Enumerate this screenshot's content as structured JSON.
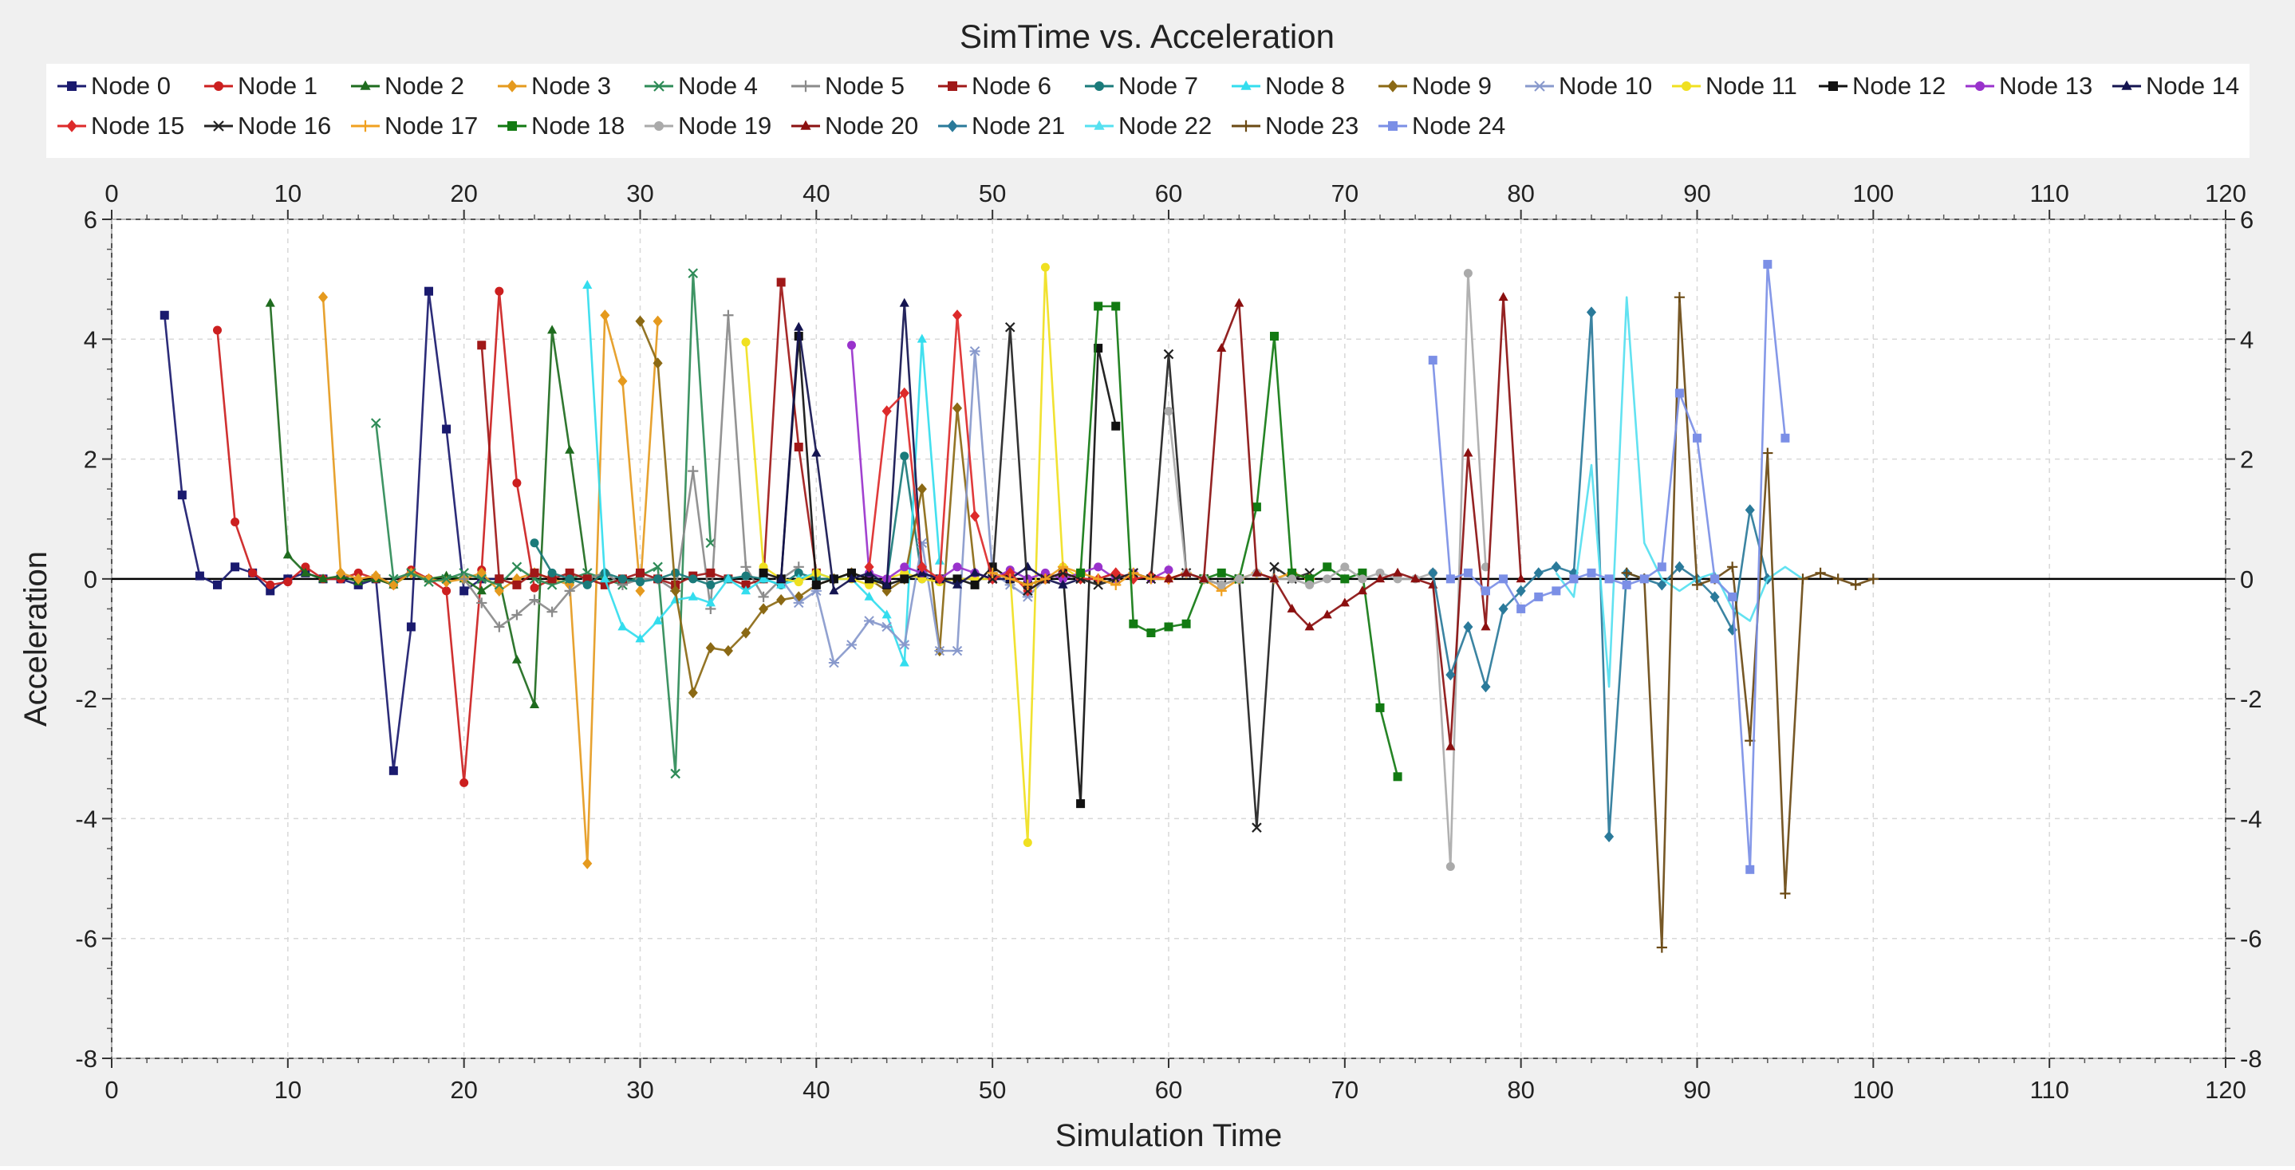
{
  "chart_data": {
    "type": "line",
    "title": "SimTime vs. Acceleration",
    "xlabel": "Simulation Time",
    "ylabel": "Acceleration",
    "xlim": [
      0,
      120
    ],
    "ylim": [
      -8,
      6
    ],
    "x_ticks": [
      0,
      10,
      20,
      30,
      40,
      50,
      60,
      70,
      80,
      90,
      100,
      110,
      120
    ],
    "y_ticks": [
      -8,
      -6,
      -4,
      -2,
      0,
      2,
      4,
      6
    ],
    "grid": true,
    "legend_position": "top",
    "series": [
      {
        "name": "Node 0",
        "color": "#1a1a6e",
        "marker": "square",
        "x": [
          3,
          4,
          5,
          6,
          7,
          8,
          9,
          10,
          11,
          12,
          13,
          14,
          15,
          16,
          17,
          18,
          19,
          20,
          21,
          22
        ],
        "y": [
          4.4,
          1.4,
          0.05,
          -0.1,
          0.2,
          0.1,
          -0.2,
          0.0,
          0.1,
          0.0,
          0.0,
          -0.1,
          0.0,
          -3.2,
          -0.8,
          4.8,
          2.5,
          -0.2,
          0.0,
          0.0
        ]
      },
      {
        "name": "Node 1",
        "color": "#cc1f1f",
        "marker": "circle",
        "x": [
          6,
          7,
          8,
          9,
          10,
          11,
          12,
          13,
          14,
          15,
          16,
          17,
          18,
          19,
          20,
          21,
          22,
          23,
          24,
          25
        ],
        "y": [
          4.15,
          0.95,
          0.1,
          -0.1,
          -0.05,
          0.2,
          0.0,
          0.0,
          0.1,
          0.0,
          -0.1,
          0.15,
          0.0,
          -0.2,
          -3.4,
          0.15,
          4.8,
          1.6,
          -0.15,
          0.0
        ]
      },
      {
        "name": "Node 2",
        "color": "#1e6b1e",
        "marker": "triangle",
        "x": [
          9,
          10,
          11,
          12,
          13,
          14,
          15,
          16,
          17,
          18,
          19,
          20,
          21,
          22,
          23,
          24,
          25,
          26,
          27,
          28
        ],
        "y": [
          4.6,
          0.4,
          0.1,
          0.0,
          0.05,
          -0.05,
          0.0,
          -0.1,
          0.1,
          0.0,
          0.05,
          0.0,
          -0.2,
          0.0,
          -1.35,
          -2.1,
          4.15,
          2.15,
          0.0,
          0.1
        ]
      },
      {
        "name": "Node 3",
        "color": "#e59a1e",
        "marker": "diamond",
        "x": [
          12,
          13,
          14,
          15,
          16,
          17,
          18,
          19,
          20,
          21,
          22,
          23,
          24,
          25,
          26,
          27,
          28,
          29,
          30,
          31
        ],
        "y": [
          4.7,
          0.1,
          0.0,
          0.05,
          -0.1,
          0.1,
          0.0,
          -0.05,
          0.0,
          0.1,
          -0.2,
          0.0,
          0.1,
          0.0,
          -0.1,
          -4.75,
          4.4,
          3.3,
          -0.2,
          4.3
        ]
      },
      {
        "name": "Node 4",
        "color": "#2e8b57",
        "marker": "x",
        "x": [
          15,
          16,
          17,
          18,
          19,
          20,
          21,
          22,
          23,
          24,
          25,
          26,
          27,
          28,
          29,
          30,
          31,
          32,
          33,
          34
        ],
        "y": [
          2.6,
          0.0,
          0.1,
          -0.05,
          0.0,
          0.1,
          0.0,
          -0.1,
          0.2,
          0.0,
          -0.1,
          0.0,
          0.1,
          0.0,
          -0.1,
          0.05,
          0.2,
          -3.25,
          5.1,
          0.6
        ]
      },
      {
        "name": "Node 5",
        "color": "#8a8a8a",
        "marker": "plus",
        "x": [
          20,
          21,
          22,
          23,
          24,
          25,
          26,
          27,
          28,
          29,
          30,
          31,
          32,
          33,
          34,
          35,
          36,
          37,
          38,
          39
        ],
        "y": [
          0.0,
          -0.4,
          -0.8,
          -0.6,
          -0.35,
          -0.55,
          -0.2,
          0.0,
          0.1,
          -0.1,
          0.0,
          0.0,
          -0.2,
          1.8,
          -0.5,
          4.4,
          0.2,
          -0.3,
          0.0,
          0.2
        ]
      },
      {
        "name": "Node 6",
        "color": "#a01818",
        "marker": "square",
        "x": [
          21,
          22,
          23,
          24,
          25,
          26,
          27,
          28,
          29,
          30,
          31,
          32,
          33,
          34,
          35,
          36,
          37,
          38,
          39,
          40
        ],
        "y": [
          3.9,
          0.0,
          -0.1,
          0.1,
          0.0,
          0.1,
          0.0,
          -0.1,
          0.0,
          0.1,
          0.0,
          -0.1,
          0.05,
          0.1,
          0.0,
          -0.1,
          0.0,
          4.95,
          2.2,
          0.1
        ]
      },
      {
        "name": "Node 7",
        "color": "#1a7a7a",
        "marker": "circle",
        "x": [
          24,
          25,
          26,
          27,
          28,
          29,
          30,
          31,
          32,
          33,
          34,
          35,
          36,
          37,
          38,
          39,
          40,
          41,
          42,
          43,
          44,
          45,
          46
        ],
        "y": [
          0.6,
          0.1,
          0.0,
          -0.1,
          0.1,
          0.0,
          -0.05,
          0.0,
          0.1,
          0.0,
          -0.1,
          0.0,
          0.05,
          0.0,
          -0.1,
          0.1,
          0.0,
          0.0,
          0.1,
          0.0,
          -0.05,
          2.05,
          0.0
        ]
      },
      {
        "name": "Node 8",
        "color": "#33ddee",
        "marker": "triangle",
        "x": [
          27,
          28,
          29,
          30,
          31,
          32,
          33,
          34,
          35,
          36,
          37,
          38,
          39,
          40,
          41,
          42,
          43,
          44,
          45,
          46,
          47
        ],
        "y": [
          4.9,
          0.0,
          -0.8,
          -1.0,
          -0.7,
          -0.35,
          -0.3,
          -0.4,
          0.0,
          -0.2,
          0.0,
          -0.1,
          0.0,
          0.1,
          0.0,
          0.0,
          -0.3,
          -0.6,
          -1.4,
          4.0,
          0.3
        ]
      },
      {
        "name": "Node 9",
        "color": "#8b6914",
        "marker": "diamond",
        "x": [
          30,
          31,
          32,
          33,
          34,
          35,
          36,
          37,
          38,
          39,
          40,
          41,
          42,
          43,
          44,
          45,
          46,
          47,
          48,
          49
        ],
        "y": [
          4.3,
          3.6,
          -0.2,
          -1.9,
          -1.15,
          -1.2,
          -0.9,
          -0.5,
          -0.35,
          -0.3,
          -0.1,
          0.0,
          0.1,
          0.0,
          -0.2,
          0.0,
          1.5,
          -1.2,
          2.85,
          0.1
        ]
      },
      {
        "name": "Node 10",
        "color": "#8899cc",
        "marker": "star",
        "x": [
          38,
          39,
          40,
          41,
          42,
          43,
          44,
          45,
          46,
          47,
          48,
          49,
          50,
          51,
          52,
          53,
          54,
          55
        ],
        "y": [
          0.0,
          -0.4,
          -0.2,
          -1.4,
          -1.1,
          -0.7,
          -0.8,
          -1.1,
          0.6,
          -1.2,
          -1.2,
          3.8,
          0.1,
          -0.1,
          -0.3,
          0.0,
          0.1,
          0.0
        ]
      },
      {
        "name": "Node 11",
        "color": "#f0e020",
        "marker": "circle",
        "x": [
          36,
          37,
          38,
          39,
          40,
          41,
          42,
          43,
          44,
          45,
          46,
          47,
          48,
          49,
          50,
          51,
          52,
          53,
          54,
          55
        ],
        "y": [
          3.95,
          0.2,
          0.0,
          -0.05,
          0.1,
          0.0,
          0.0,
          -0.1,
          0.0,
          0.1,
          0.0,
          -0.05,
          0.0,
          0.0,
          0.0,
          0.1,
          -4.4,
          5.2,
          0.2,
          0.0
        ]
      },
      {
        "name": "Node 12",
        "color": "#111111",
        "marker": "square",
        "x": [
          37,
          38,
          39,
          40,
          41,
          42,
          43,
          44,
          45,
          46,
          47,
          48,
          49,
          50,
          51,
          52,
          53,
          54,
          55,
          56,
          57
        ],
        "y": [
          0.1,
          0.0,
          4.05,
          -0.1,
          0.0,
          0.1,
          0.0,
          -0.1,
          0.0,
          0.1,
          0.0,
          0.0,
          -0.1,
          0.2,
          0.0,
          -0.1,
          0.0,
          0.1,
          -3.75,
          3.85,
          2.55
        ]
      },
      {
        "name": "Node 13",
        "color": "#9932cc",
        "marker": "circle",
        "x": [
          42,
          43,
          44,
          45,
          46,
          47,
          48,
          49,
          50,
          51,
          52,
          53,
          54,
          55,
          56,
          57,
          58,
          59,
          60
        ],
        "y": [
          3.9,
          0.1,
          0.0,
          0.2,
          0.1,
          0.0,
          0.2,
          0.1,
          0.0,
          0.15,
          0.0,
          0.1,
          0.0,
          0.1,
          0.2,
          0.0,
          0.1,
          0.0,
          0.15
        ]
      },
      {
        "name": "Node 14",
        "color": "#141450",
        "marker": "triangle",
        "x": [
          38,
          39,
          40,
          41,
          42,
          43,
          44,
          45,
          46,
          47,
          48,
          49,
          50,
          51,
          52,
          53,
          54,
          55,
          56,
          57
        ],
        "y": [
          0.0,
          4.2,
          2.1,
          -0.2,
          0.0,
          0.1,
          -0.1,
          4.6,
          0.1,
          0.0,
          -0.1,
          0.1,
          0.0,
          0.0,
          0.2,
          0.0,
          -0.1,
          0.0,
          0.0,
          0.1
        ]
      },
      {
        "name": "Node 15",
        "color": "#dd2a2a",
        "marker": "diamond",
        "x": [
          43,
          44,
          45,
          46,
          47,
          48,
          49,
          50,
          51,
          52,
          53,
          54,
          55,
          56,
          57,
          58,
          59,
          60,
          61
        ],
        "y": [
          0.2,
          2.8,
          3.1,
          0.2,
          0.0,
          4.4,
          1.05,
          0.0,
          0.1,
          -0.2,
          0.0,
          0.1,
          0.0,
          0.0,
          0.1,
          0.0,
          0.05,
          0.0,
          0.1
        ]
      },
      {
        "name": "Node 16",
        "color": "#222222",
        "marker": "x",
        "x": [
          50,
          51,
          52,
          53,
          54,
          55,
          56,
          57,
          58,
          59,
          60,
          61,
          62,
          63,
          64,
          65,
          66,
          67,
          68
        ],
        "y": [
          0.0,
          4.2,
          -0.2,
          0.0,
          0.1,
          0.0,
          -0.1,
          0.0,
          0.1,
          0.0,
          3.75,
          0.1,
          0.0,
          -0.1,
          0.0,
          -4.15,
          0.2,
          0.0,
          0.1
        ]
      },
      {
        "name": "Node 17",
        "color": "#f0a020",
        "marker": "plus",
        "x": [
          50,
          51,
          52,
          53,
          54,
          55,
          56,
          57,
          58,
          59,
          60,
          61,
          62,
          63,
          64,
          65,
          66,
          67,
          68
        ],
        "y": [
          0.1,
          0.0,
          -0.1,
          0.0,
          0.2,
          0.1,
          0.0,
          -0.1,
          0.1,
          0.0,
          0.0,
          0.1,
          0.0,
          -0.2,
          0.0,
          0.1,
          0.0,
          0.1,
          0.0
        ]
      },
      {
        "name": "Node 18",
        "color": "#127a12",
        "marker": "square",
        "x": [
          55,
          56,
          57,
          58,
          59,
          60,
          61,
          62,
          63,
          64,
          65,
          66,
          67,
          68,
          69,
          70,
          71,
          72,
          73
        ],
        "y": [
          0.1,
          4.55,
          4.55,
          -0.75,
          -0.9,
          -0.8,
          -0.75,
          0.0,
          0.1,
          0.0,
          1.2,
          4.05,
          0.1,
          0.0,
          0.2,
          0.0,
          0.1,
          -2.15,
          -3.3
        ]
      },
      {
        "name": "Node 19",
        "color": "#aaaaaa",
        "marker": "circle",
        "x": [
          60,
          61,
          62,
          63,
          64,
          65,
          66,
          67,
          68,
          69,
          70,
          71,
          72,
          73,
          74,
          75,
          76,
          77,
          78
        ],
        "y": [
          2.8,
          0.1,
          0.0,
          -0.1,
          0.0,
          0.1,
          0.0,
          0.0,
          -0.1,
          0.0,
          0.2,
          0.0,
          0.1,
          0.0,
          0.0,
          0.1,
          -4.8,
          5.1,
          0.2
        ]
      },
      {
        "name": "Node 20",
        "color": "#8b1010",
        "marker": "triangle",
        "x": [
          60,
          61,
          62,
          63,
          64,
          65,
          66,
          67,
          68,
          69,
          70,
          71,
          72,
          73,
          74,
          75,
          76,
          77,
          78,
          79,
          80
        ],
        "y": [
          0.0,
          0.1,
          0.0,
          3.85,
          4.6,
          0.1,
          0.0,
          -0.5,
          -0.8,
          -0.6,
          -0.4,
          -0.2,
          0.0,
          0.1,
          0.0,
          -0.1,
          -2.8,
          2.1,
          -0.8,
          4.7,
          0.0
        ]
      },
      {
        "name": "Node 21",
        "color": "#2a7a9a",
        "marker": "diamond",
        "x": [
          75,
          76,
          77,
          78,
          79,
          80,
          81,
          82,
          83,
          84,
          85,
          86,
          87,
          88,
          89,
          90,
          91,
          92,
          93,
          94
        ],
        "y": [
          0.1,
          -1.6,
          -0.8,
          -1.8,
          -0.5,
          -0.2,
          0.1,
          0.2,
          0.1,
          4.45,
          -4.3,
          0.1,
          0.0,
          -0.1,
          0.2,
          0.0,
          -0.3,
          -0.85,
          1.15,
          0.0
        ]
      },
      {
        "name": "Node 22",
        "color": "#55e0f0",
        "marker": "none",
        "x": [
          82,
          83,
          84,
          85,
          86,
          87,
          88,
          89,
          90,
          91,
          92,
          93,
          94,
          95,
          96
        ],
        "y": [
          0.1,
          -0.3,
          1.9,
          -1.8,
          4.7,
          0.6,
          0.0,
          -0.2,
          0.0,
          0.1,
          -0.5,
          -0.7,
          0.0,
          0.2,
          0.0
        ]
      },
      {
        "name": "Node 23",
        "color": "#6b4a14",
        "marker": "plus",
        "x": [
          86,
          87,
          88,
          89,
          90,
          91,
          92,
          93,
          94,
          95,
          96,
          97,
          98,
          99,
          100
        ],
        "y": [
          0.1,
          0.0,
          -6.15,
          4.7,
          -0.1,
          0.0,
          0.2,
          -2.7,
          2.1,
          -5.25,
          0.0,
          0.1,
          0.0,
          -0.1,
          0.0
        ]
      },
      {
        "name": "Node 24",
        "color": "#7b8fe6",
        "marker": "square",
        "x": [
          75,
          76,
          77,
          78,
          79,
          80,
          81,
          82,
          83,
          84,
          85,
          86,
          87,
          88,
          89,
          90,
          91,
          92,
          93,
          94,
          95
        ],
        "y": [
          3.65,
          0.0,
          0.1,
          -0.2,
          0.0,
          -0.5,
          -0.3,
          -0.2,
          0.0,
          0.1,
          0.0,
          -0.1,
          0.0,
          0.2,
          3.1,
          2.35,
          0.0,
          -0.3,
          -4.85,
          5.25,
          2.35
        ]
      }
    ]
  }
}
